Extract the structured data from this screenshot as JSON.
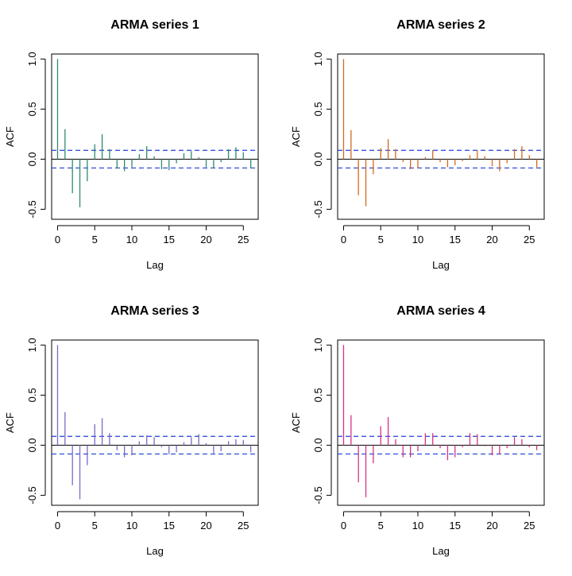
{
  "chart_data": [
    {
      "type": "bar",
      "title": "ARMA series 1",
      "xlabel": "Lag",
      "ylabel": "ACF",
      "xlim": [
        -0.8,
        27
      ],
      "ylim": [
        -0.6,
        1.05
      ],
      "x_ticks": [
        0,
        5,
        10,
        15,
        20,
        25
      ],
      "y_ticks": [
        -0.5,
        0.0,
        0.5,
        1.0
      ],
      "lags": [
        0,
        1,
        2,
        3,
        4,
        5,
        6,
        7,
        8,
        9,
        10,
        11,
        12,
        13,
        14,
        15,
        16,
        17,
        18,
        19,
        20,
        21,
        22,
        23,
        24,
        25,
        26
      ],
      "values": [
        1.0,
        0.3,
        -0.34,
        -0.48,
        -0.22,
        0.15,
        0.25,
        0.1,
        -0.09,
        -0.12,
        -0.08,
        0.05,
        0.13,
        0.03,
        -0.1,
        -0.11,
        -0.04,
        0.06,
        0.08,
        0.02,
        -0.08,
        -0.09,
        -0.03,
        0.1,
        0.12,
        0.07,
        -0.09
      ],
      "ci": 0.088,
      "color": "#2e8b6f",
      "ci_color": "#1f3fd6"
    },
    {
      "type": "bar",
      "title": "ARMA series 2",
      "xlabel": "Lag",
      "ylabel": "ACF",
      "xlim": [
        -0.8,
        27
      ],
      "ylim": [
        -0.6,
        1.05
      ],
      "x_ticks": [
        0,
        5,
        10,
        15,
        20,
        25
      ],
      "y_ticks": [
        -0.5,
        0.0,
        0.5,
        1.0
      ],
      "lags": [
        0,
        1,
        2,
        3,
        4,
        5,
        6,
        7,
        8,
        9,
        10,
        11,
        12,
        13,
        14,
        15,
        16,
        17,
        18,
        19,
        20,
        21,
        22,
        23,
        24,
        25,
        26
      ],
      "values": [
        1.0,
        0.29,
        -0.36,
        -0.47,
        -0.15,
        0.11,
        0.2,
        0.1,
        -0.03,
        -0.1,
        -0.09,
        0.02,
        0.09,
        -0.03,
        -0.08,
        -0.06,
        -0.02,
        0.04,
        0.09,
        0.03,
        -0.07,
        -0.12,
        -0.04,
        0.1,
        0.13,
        0.04,
        -0.08
      ],
      "ci": 0.088,
      "color": "#d2691e",
      "ci_color": "#1f3fd6"
    },
    {
      "type": "bar",
      "title": "ARMA series 3",
      "xlabel": "Lag",
      "ylabel": "ACF",
      "xlim": [
        -0.8,
        27
      ],
      "ylim": [
        -0.6,
        1.05
      ],
      "x_ticks": [
        0,
        5,
        10,
        15,
        20,
        25
      ],
      "y_ticks": [
        -0.5,
        0.0,
        0.5,
        1.0
      ],
      "lags": [
        0,
        1,
        2,
        3,
        4,
        5,
        6,
        7,
        8,
        9,
        10,
        11,
        12,
        13,
        14,
        15,
        16,
        17,
        18,
        19,
        20,
        21,
        22,
        23,
        24,
        25,
        26
      ],
      "values": [
        1.0,
        0.33,
        -0.4,
        -0.54,
        -0.2,
        0.21,
        0.27,
        0.12,
        -0.05,
        -0.12,
        -0.1,
        0.04,
        0.1,
        0.08,
        -0.02,
        -0.09,
        -0.07,
        0.03,
        0.08,
        0.11,
        0.02,
        -0.08,
        -0.06,
        0.04,
        0.06,
        0.05,
        -0.07
      ],
      "ci": 0.088,
      "color": "#7b68c8",
      "ci_color": "#1f3fd6"
    },
    {
      "type": "bar",
      "title": "ARMA series 4",
      "xlabel": "Lag",
      "ylabel": "ACF",
      "xlim": [
        -0.8,
        27
      ],
      "ylim": [
        -0.6,
        1.05
      ],
      "x_ticks": [
        0,
        5,
        10,
        15,
        20,
        25
      ],
      "y_ticks": [
        -0.5,
        0.0,
        0.5,
        1.0
      ],
      "lags": [
        0,
        1,
        2,
        3,
        4,
        5,
        6,
        7,
        8,
        9,
        10,
        11,
        12,
        13,
        14,
        15,
        16,
        17,
        18,
        19,
        20,
        21,
        22,
        23,
        24,
        25,
        26
      ],
      "values": [
        1.0,
        0.3,
        -0.37,
        -0.52,
        -0.18,
        0.19,
        0.28,
        0.06,
        -0.12,
        -0.12,
        -0.06,
        0.12,
        0.12,
        -0.03,
        -0.15,
        -0.12,
        -0.02,
        0.12,
        0.11,
        -0.01,
        -0.1,
        -0.09,
        -0.03,
        0.08,
        0.06,
        -0.02,
        -0.05
      ],
      "ci": 0.088,
      "color": "#d63384",
      "ci_color": "#1f3fd6"
    }
  ]
}
